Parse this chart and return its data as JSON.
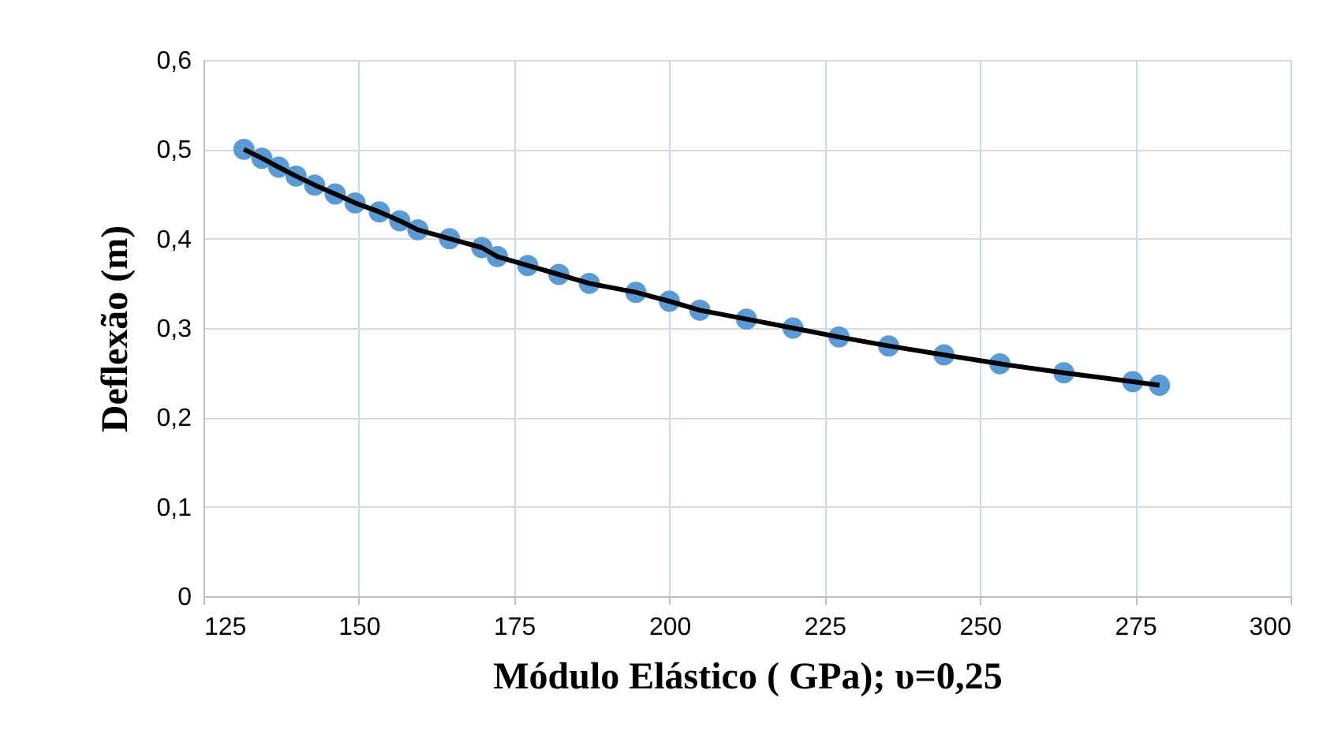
{
  "chart_data": {
    "type": "line",
    "xlabel": "Módulo Elástico ( GPa); υ=0,25",
    "ylabel": "Deflexão (m)",
    "x": [
      131.5,
      134.4,
      137.1,
      139.9,
      142.9,
      146.2,
      149.4,
      153.3,
      156.6,
      159.5,
      164.6,
      169.8,
      172.3,
      177.2,
      182.2,
      187.1,
      194.6,
      200,
      204.9,
      212.4,
      219.9,
      227.3,
      235.3,
      244.2,
      253.2,
      263.5,
      274.6,
      278.9
    ],
    "series": [
      {
        "type": "scatter",
        "color": "#5b9bd5",
        "values": [
          0.5,
          0.49,
          0.48,
          0.47,
          0.46,
          0.45,
          0.44,
          0.43,
          0.42,
          0.41,
          0.4,
          0.39,
          0.38,
          0.37,
          0.36,
          0.35,
          0.34,
          0.33,
          0.32,
          0.31,
          0.3,
          0.29,
          0.28,
          0.27,
          0.26,
          0.25,
          0.24,
          0.236
        ]
      },
      {
        "marker": "none",
        "color": "#000000",
        "values": [
          0.5,
          0.49,
          0.48,
          0.47,
          0.46,
          0.45,
          0.44,
          0.43,
          0.42,
          0.41,
          0.4,
          0.39,
          0.38,
          0.37,
          0.36,
          0.35,
          0.34,
          0.33,
          0.32,
          0.31,
          0.3,
          0.29,
          0.28,
          0.27,
          0.26,
          0.25,
          0.24,
          0.236
        ]
      }
    ],
    "xlim": [
      125,
      300
    ],
    "xticks": [
      125,
      150,
      175,
      200,
      225,
      250,
      275,
      300
    ],
    "ylim": [
      0,
      0.6
    ],
    "yticks": [
      0,
      {
        "value": 0.1,
        "label": "0,1"
      },
      {
        "value": 0.2,
        "label": "0,2"
      },
      {
        "value": 0.3,
        "label": "0,3"
      },
      {
        "value": 0.4,
        "label": "0,4"
      },
      {
        "value": 0.5,
        "label": "0,5"
      },
      {
        "value": 0.6,
        "label": "0,6"
      }
    ],
    "grid": true,
    "marker": "circle",
    "line_style": "solid"
  }
}
